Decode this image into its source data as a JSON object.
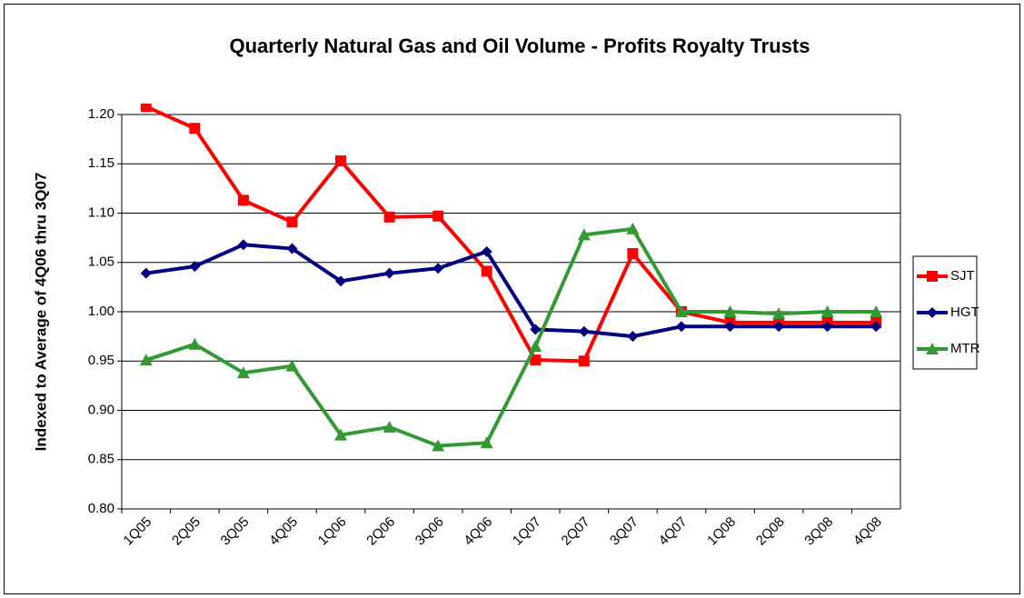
{
  "chart_data": {
    "type": "line",
    "title": "Quarterly Natural Gas and Oil Volume - Profits Royalty Trusts",
    "y_label": "Indexed to Average of 4Q06 thru 3Q07",
    "categories": [
      "1Q05",
      "2Q05",
      "3Q05",
      "4Q05",
      "1Q06",
      "2Q06",
      "3Q06",
      "4Q06",
      "1Q07",
      "2Q07",
      "3Q07",
      "4Q07",
      "1Q08",
      "2Q08",
      "3Q08",
      "4Q08"
    ],
    "series": [
      {
        "name": "SJT",
        "color": "#ff0000",
        "marker": "square",
        "values": [
          1.208,
          1.186,
          1.113,
          1.091,
          1.153,
          1.096,
          1.097,
          1.041,
          0.951,
          0.95,
          1.059,
          1.0,
          0.989,
          0.989,
          0.989,
          0.989
        ]
      },
      {
        "name": "HGT",
        "color": "#000080",
        "marker": "diamond",
        "values": [
          1.039,
          1.046,
          1.068,
          1.064,
          1.031,
          1.039,
          1.044,
          1.061,
          0.982,
          0.98,
          0.975,
          0.985,
          0.985,
          0.985,
          0.985,
          0.985
        ]
      },
      {
        "name": "MTR",
        "color": "#339933",
        "marker": "triangle",
        "values": [
          0.951,
          0.967,
          0.938,
          0.945,
          0.875,
          0.883,
          0.864,
          0.867,
          0.965,
          1.078,
          1.084,
          1.0,
          1.0,
          0.998,
          1.0,
          1.0
        ]
      }
    ],
    "ylim": [
      0.8,
      1.2
    ],
    "yticks": [
      {
        "value": 0.8,
        "label": "0.80"
      },
      {
        "value": 0.85,
        "label": "0.85"
      },
      {
        "value": 0.9,
        "label": "0.90"
      },
      {
        "value": 0.95,
        "label": "0.95"
      },
      {
        "value": 1.0,
        "label": "1.00"
      },
      {
        "value": 1.05,
        "label": "1.05"
      },
      {
        "value": 1.1,
        "label": "1.10"
      },
      {
        "value": 1.15,
        "label": "1.15"
      },
      {
        "value": 1.2,
        "label": "1.20"
      }
    ],
    "grid": true,
    "legend": "right"
  }
}
